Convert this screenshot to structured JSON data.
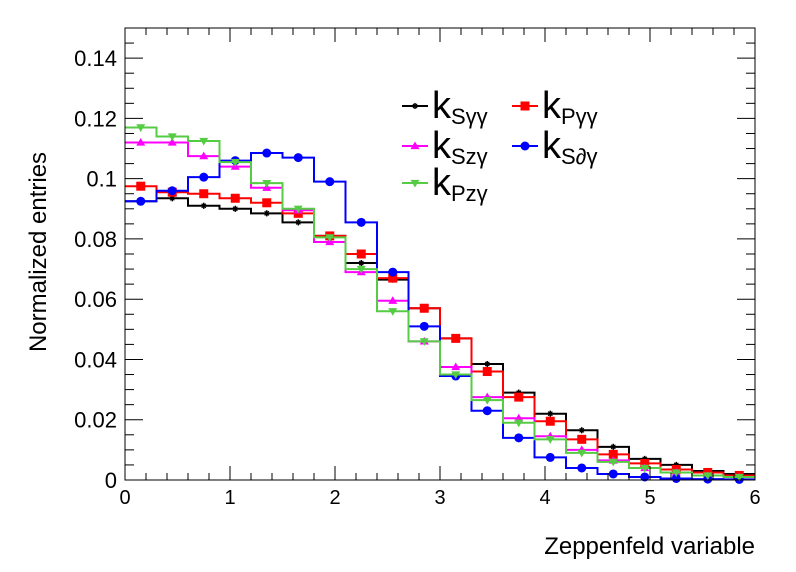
{
  "chart_data": {
    "type": "histogram-step",
    "title": "",
    "xlabel": "Zeppenfeld variable",
    "ylabel": "Normalized entries",
    "xlim": [
      0,
      6
    ],
    "ylim": [
      0,
      0.15
    ],
    "x_ticks": [
      0,
      1,
      2,
      3,
      4,
      5,
      6
    ],
    "x_tick_labels": [
      "0",
      "1",
      "2",
      "3",
      "4",
      "5",
      "6"
    ],
    "y_ticks": [
      0,
      0.02,
      0.04,
      0.06,
      0.08,
      0.1,
      0.12,
      0.14
    ],
    "y_tick_labels": [
      "0",
      "0.02",
      "0.04",
      "0.06",
      "0.08",
      "0.1",
      "0.12",
      "0.14"
    ],
    "grid": false,
    "legend_position": "top-right",
    "bin_edges": [
      0,
      0.3,
      0.6,
      0.9,
      1.2,
      1.5,
      1.8,
      2.1,
      2.4,
      2.7,
      3.0,
      3.3,
      3.6,
      3.9,
      4.2,
      4.5,
      4.8,
      5.1,
      5.4,
      5.7,
      6.0
    ],
    "series": [
      {
        "name": "k_{Sγγ}",
        "legend_main": "k",
        "legend_sub": "Sγγ",
        "color": "#000000",
        "marker": "star",
        "values": [
          0.0925,
          0.0935,
          0.091,
          0.09,
          0.0885,
          0.0855,
          0.081,
          0.072,
          0.0665,
          0.057,
          0.047,
          0.0385,
          0.029,
          0.022,
          0.0165,
          0.011,
          0.007,
          0.005,
          0.003,
          0.002
        ]
      },
      {
        "name": "k_{Pγγ}",
        "legend_main": "k",
        "legend_sub": "Pγγ",
        "color": "#ff0000",
        "marker": "square",
        "values": [
          0.0975,
          0.0955,
          0.095,
          0.0935,
          0.092,
          0.0885,
          0.081,
          0.075,
          0.067,
          0.057,
          0.047,
          0.036,
          0.0275,
          0.0195,
          0.0135,
          0.0085,
          0.0055,
          0.0035,
          0.0025,
          0.0015
        ]
      },
      {
        "name": "k_{Szγ}",
        "legend_main": "k",
        "legend_sub": "Szγ",
        "color": "#ff00ff",
        "marker": "triangle-up",
        "values": [
          0.112,
          0.112,
          0.1075,
          0.104,
          0.097,
          0.0895,
          0.079,
          0.069,
          0.0595,
          0.046,
          0.0375,
          0.0275,
          0.0205,
          0.0145,
          0.01,
          0.0065,
          0.004,
          0.0025,
          0.0015,
          0.001
        ]
      },
      {
        "name": "k_{S∂γ}",
        "legend_main": "k",
        "legend_sub": "S∂γ",
        "color": "#0000ff",
        "marker": "circle",
        "values": [
          0.0925,
          0.096,
          0.1005,
          0.106,
          0.1085,
          0.107,
          0.099,
          0.0855,
          0.069,
          0.051,
          0.0345,
          0.023,
          0.014,
          0.0075,
          0.004,
          0.002,
          0.001,
          0.0005,
          0.0003,
          0.0002
        ]
      },
      {
        "name": "k_{Pzγ}",
        "legend_main": "k",
        "legend_sub": "Pzγ",
        "color": "#55cc44",
        "marker": "triangle-down",
        "values": [
          0.117,
          0.114,
          0.1125,
          0.1055,
          0.0985,
          0.09,
          0.0805,
          0.07,
          0.056,
          0.046,
          0.035,
          0.0265,
          0.019,
          0.0135,
          0.009,
          0.006,
          0.004,
          0.0025,
          0.0015,
          0.001
        ]
      }
    ]
  }
}
